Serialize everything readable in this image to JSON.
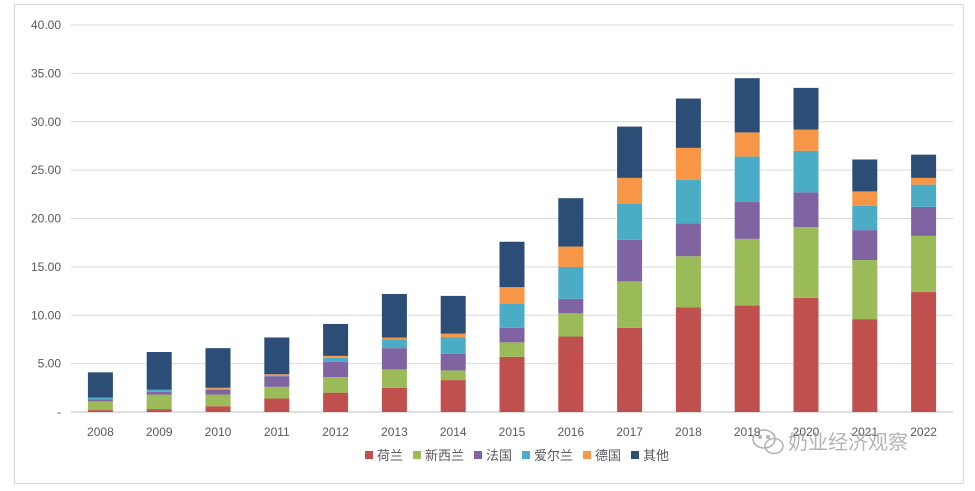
{
  "chart_data": {
    "type": "bar",
    "stacked": true,
    "categories": [
      "2008",
      "2009",
      "2010",
      "2011",
      "2012",
      "2013",
      "2014",
      "2015",
      "2016",
      "2017",
      "2018",
      "2019",
      "2020",
      "2021",
      "2022"
    ],
    "ylim": [
      0,
      40
    ],
    "yticks": [
      "-",
      "5.00",
      "10.00",
      "15.00",
      "20.00",
      "25.00",
      "30.00",
      "35.00",
      "40.00"
    ],
    "grid": true,
    "legend_position": "bottom",
    "series": [
      {
        "name": "荷兰",
        "color": "#c0504d",
        "values": [
          0.2,
          0.3,
          0.6,
          1.4,
          2.0,
          2.5,
          3.3,
          5.7,
          7.8,
          8.7,
          10.8,
          11.0,
          11.8,
          9.6,
          12.4
        ]
      },
      {
        "name": "新西兰",
        "color": "#9bbb59",
        "values": [
          0.9,
          1.5,
          1.2,
          1.2,
          1.6,
          1.9,
          1.0,
          1.5,
          2.4,
          4.8,
          5.3,
          6.9,
          7.3,
          6.1,
          5.8
        ]
      },
      {
        "name": "法国",
        "color": "#8064a2",
        "values": [
          0.2,
          0.3,
          0.5,
          1.1,
          1.6,
          2.2,
          1.7,
          1.5,
          1.5,
          4.3,
          3.4,
          3.8,
          3.6,
          3.1,
          3.0
        ]
      },
      {
        "name": "爱尔兰",
        "color": "#4bacc6",
        "values": [
          0.2,
          0.2,
          0.1,
          0.1,
          0.4,
          0.9,
          1.7,
          2.5,
          3.3,
          3.7,
          4.5,
          4.7,
          4.3,
          2.5,
          2.3
        ]
      },
      {
        "name": "德国",
        "color": "#f79646",
        "values": [
          0.0,
          0.0,
          0.1,
          0.1,
          0.2,
          0.2,
          0.4,
          1.7,
          2.1,
          2.7,
          3.3,
          2.5,
          2.2,
          1.5,
          0.7
        ]
      },
      {
        "name": "其他",
        "color": "#2c4d75",
        "values": [
          2.6,
          3.9,
          4.1,
          3.8,
          3.3,
          4.5,
          3.9,
          4.7,
          5.0,
          5.3,
          5.1,
          5.6,
          4.3,
          3.3,
          2.4
        ]
      }
    ]
  },
  "watermark": {
    "text": "奶业经济观察",
    "icon": "wechat-icon"
  }
}
